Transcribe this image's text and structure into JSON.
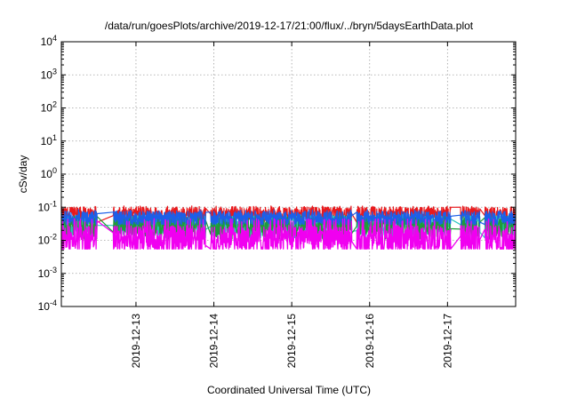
{
  "chart_data": {
    "type": "line",
    "title": "/data/run/goesPlots/archive/2019-12-17/21:00/flux/../bryn/5daysEarthData.plot",
    "xlabel": "Coordinated Universal Time (UTC)",
    "ylabel": "cSv/day",
    "yscale": "log",
    "ylim": [
      0.0001,
      10000
    ],
    "xlim": [
      "2019-12-12T01:00",
      "2019-12-17T21:00"
    ],
    "grid": true,
    "legend": "none",
    "y_ticks": [
      {
        "value": 0.0001,
        "base": "10",
        "exp": "-4"
      },
      {
        "value": 0.001,
        "base": "10",
        "exp": "-3"
      },
      {
        "value": 0.01,
        "base": "10",
        "exp": "-2"
      },
      {
        "value": 0.1,
        "base": "10",
        "exp": "-1"
      },
      {
        "value": 1,
        "base": "10",
        "exp": "0"
      },
      {
        "value": 10,
        "base": "10",
        "exp": "1"
      },
      {
        "value": 100,
        "base": "10",
        "exp": "2"
      },
      {
        "value": 1000,
        "base": "10",
        "exp": "3"
      },
      {
        "value": 10000,
        "base": "10",
        "exp": "4"
      }
    ],
    "x_ticks": [
      "2019-12-13",
      "2019-12-14",
      "2019-12-15",
      "2019-12-16",
      "2019-12-17"
    ],
    "gaps": [
      [
        "2019-12-12T12:00",
        "2019-12-12T17:00"
      ],
      [
        "2019-12-13T21:30",
        "2019-12-13T23:00"
      ],
      [
        "2019-12-15T18:30",
        "2019-12-15T20:00"
      ],
      [
        "2019-12-17T01:00",
        "2019-12-17T04:00"
      ],
      [
        "2019-12-17T10:00",
        "2019-12-17T11:30"
      ]
    ],
    "series": [
      {
        "color": "#e8191c",
        "base": 0.065,
        "min": 0.035,
        "max": 0.11,
        "gapValue": 0.045
      },
      {
        "color": "#2dc6c0",
        "base": 0.03,
        "min": 0.012,
        "max": 0.06,
        "gapValue": 0.015
      },
      {
        "color": "#1f9a3a",
        "base": 0.028,
        "min": 0.011,
        "max": 0.055,
        "gapValue": 0.013
      },
      {
        "color": "#1c5fe8",
        "base": 0.05,
        "min": 0.03,
        "max": 0.085,
        "gapValue": 0.04
      },
      {
        "color": "#f000f0",
        "base": 0.012,
        "min": 0.0055,
        "max": 0.045,
        "gapValue": 0.009
      }
    ]
  }
}
